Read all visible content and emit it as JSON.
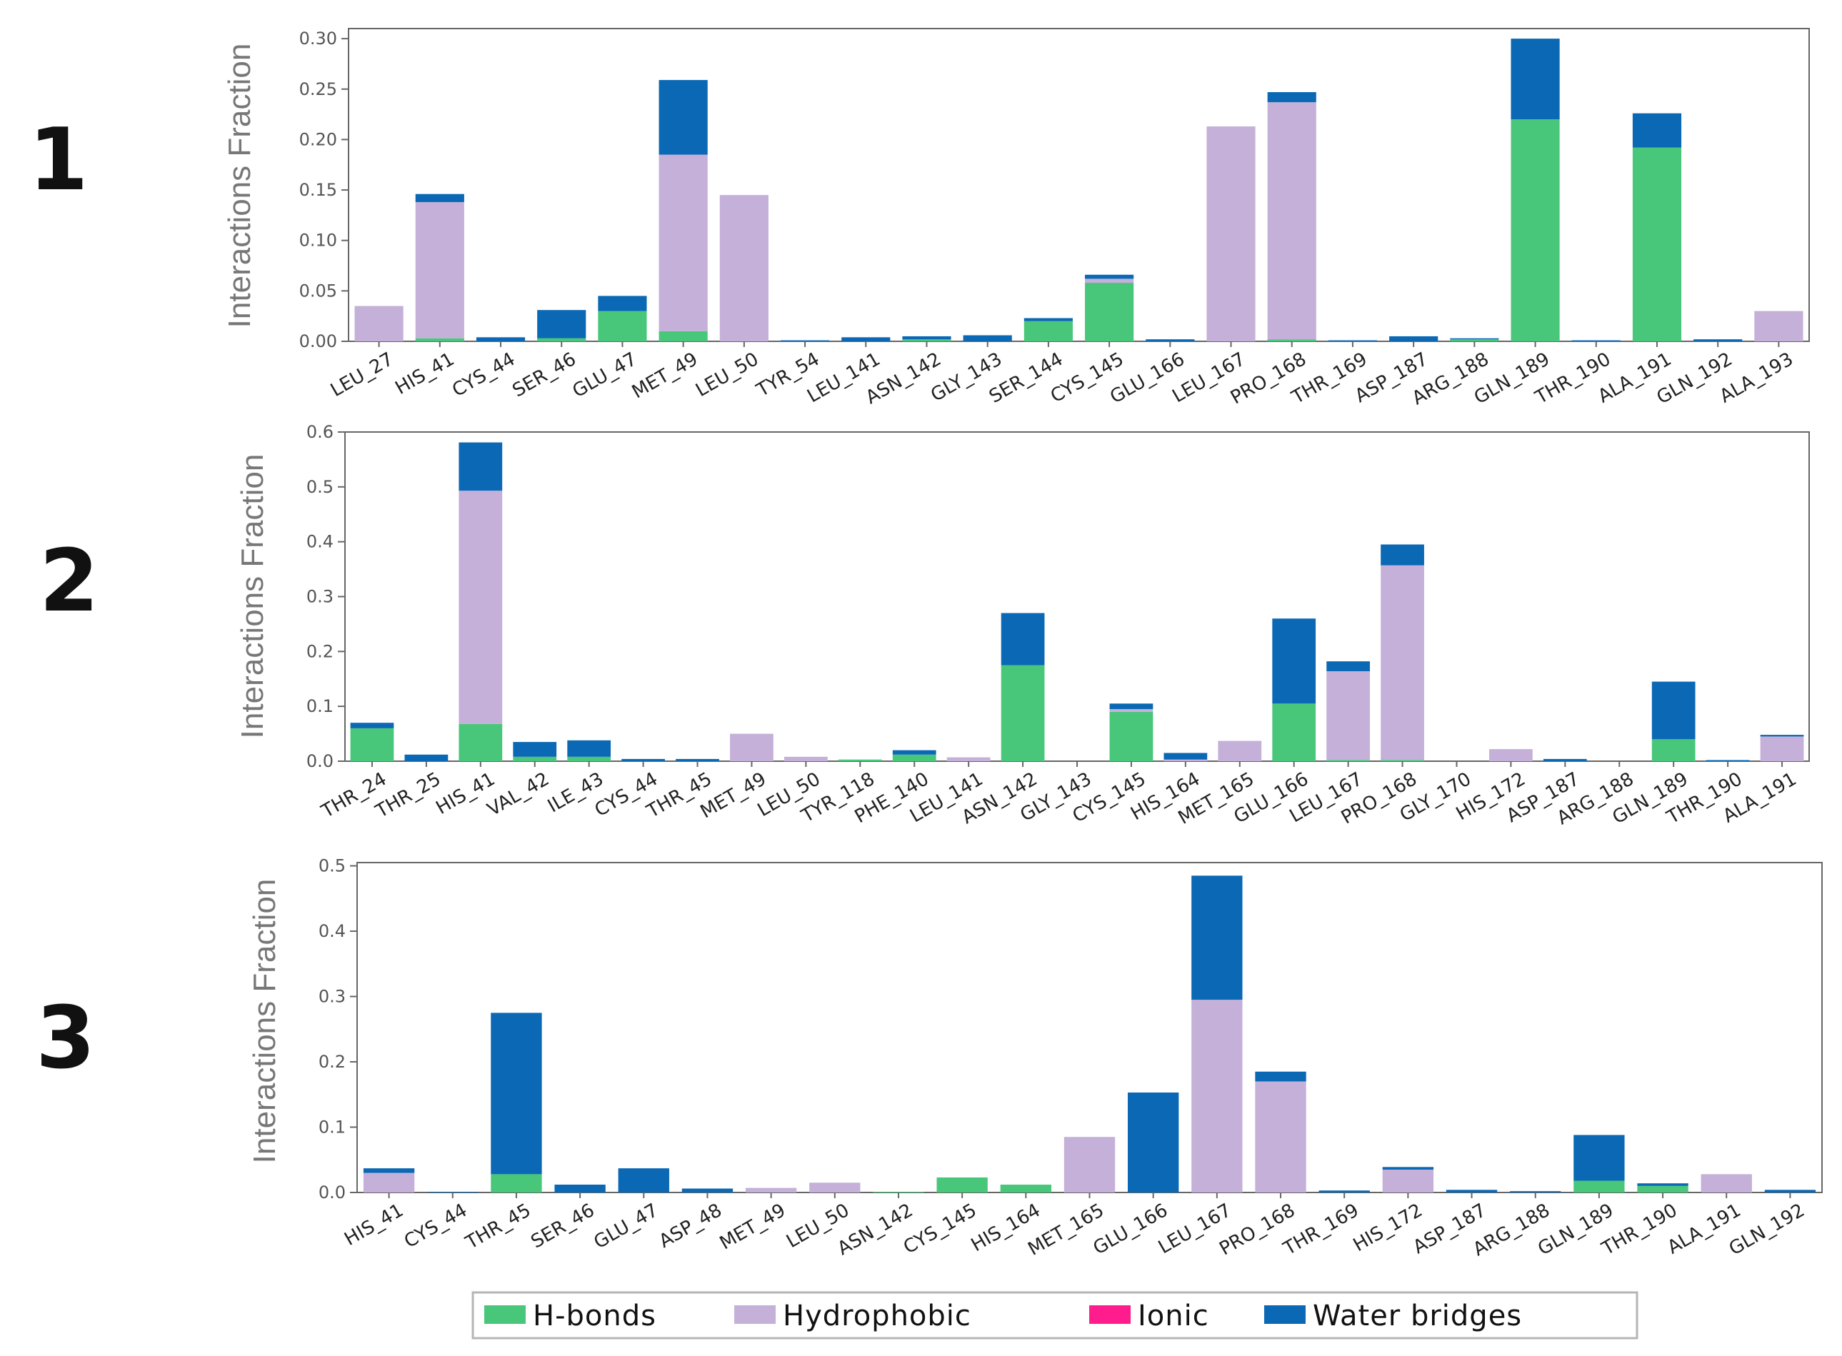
{
  "panel_labels": [
    "1",
    "2",
    "3"
  ],
  "colors": {
    "hbonds": "#48c77a",
    "hydrophobic": "#c4b0d8",
    "ionic": "#ff1c8d",
    "water": "#0a68b4",
    "axis": "#666666"
  },
  "legend": {
    "items": [
      {
        "key": "hbonds",
        "label": "H-bonds"
      },
      {
        "key": "hydrophobic",
        "label": "Hydrophobic"
      },
      {
        "key": "ionic",
        "label": "Ionic"
      },
      {
        "key": "water",
        "label": "Water bridges"
      }
    ]
  },
  "chart_data": [
    {
      "type": "bar",
      "stacked": true,
      "ylabel": "Interactions Fraction",
      "ylim": [
        0,
        0.31
      ],
      "yticks": [
        "0.00",
        "0.05",
        "0.10",
        "0.15",
        "0.20",
        "0.25",
        "0.30"
      ],
      "categories": [
        "LEU_27",
        "HIS_41",
        "CYS_44",
        "SER_46",
        "GLU_47",
        "MET_49",
        "LEU_50",
        "TYR_54",
        "LEU_141",
        "ASN_142",
        "GLY_143",
        "SER_144",
        "CYS_145",
        "GLU_166",
        "LEU_167",
        "PRO_168",
        "THR_169",
        "ASP_187",
        "ARG_188",
        "GLN_189",
        "THR_190",
        "ALA_191",
        "GLN_192",
        "ALA_193"
      ],
      "series": [
        {
          "name": "H-bonds",
          "key": "hbonds",
          "values": [
            0,
            0.003,
            0,
            0.003,
            0.03,
            0.01,
            0,
            0,
            0,
            0.002,
            0,
            0.02,
            0.058,
            0,
            0,
            0.002,
            0,
            0,
            0.002,
            0.22,
            0,
            0.192,
            0,
            0
          ]
        },
        {
          "name": "Hydrophobic",
          "key": "hydrophobic",
          "values": [
            0.035,
            0.135,
            0,
            0,
            0,
            0.175,
            0.145,
            0,
            0,
            0,
            0,
            0,
            0.004,
            0,
            0.213,
            0.235,
            0,
            0,
            0,
            0,
            0,
            0,
            0,
            0.03
          ]
        },
        {
          "name": "Ionic",
          "key": "ionic",
          "values": [
            0,
            0,
            0,
            0,
            0,
            0,
            0,
            0,
            0,
            0,
            0,
            0,
            0,
            0,
            0,
            0,
            0,
            0,
            0,
            0,
            0,
            0,
            0,
            0
          ]
        },
        {
          "name": "Water bridges",
          "key": "water",
          "values": [
            0,
            0.008,
            0.004,
            0.028,
            0.015,
            0.074,
            0,
            0.001,
            0.004,
            0.003,
            0.006,
            0.003,
            0.004,
            0.002,
            0,
            0.01,
            0.001,
            0.005,
            0.001,
            0.08,
            0.001,
            0.034,
            0.002,
            0
          ]
        }
      ]
    },
    {
      "type": "bar",
      "stacked": true,
      "ylabel": "Interactions Fraction",
      "ylim": [
        0,
        0.6
      ],
      "yticks": [
        "0.0",
        "0.1",
        "0.2",
        "0.3",
        "0.4",
        "0.5",
        "0.6"
      ],
      "categories": [
        "THR_24",
        "THR_25",
        "HIS_41",
        "VAL_42",
        "ILE_43",
        "CYS_44",
        "THR_45",
        "MET_49",
        "LEU_50",
        "TYR_118",
        "PHE_140",
        "LEU_141",
        "ASN_142",
        "GLY_143",
        "CYS_145",
        "HIS_164",
        "MET_165",
        "GLU_166",
        "LEU_167",
        "PRO_168",
        "GLY_170",
        "HIS_172",
        "ASP_187",
        "ARG_188",
        "GLN_189",
        "THR_190",
        "ALA_191"
      ],
      "series": [
        {
          "name": "H-bonds",
          "key": "hbonds",
          "values": [
            0.06,
            0,
            0.068,
            0.008,
            0.008,
            0,
            0,
            0,
            0,
            0.003,
            0.012,
            0,
            0.175,
            0,
            0.09,
            0,
            0,
            0.105,
            0.002,
            0.002,
            0,
            0,
            0,
            0,
            0.04,
            0,
            0
          ]
        },
        {
          "name": "Hydrophobic",
          "key": "hydrophobic",
          "values": [
            0,
            0,
            0.425,
            0,
            0,
            0,
            0,
            0.05,
            0.008,
            0,
            0,
            0.007,
            0,
            0,
            0.005,
            0.003,
            0.037,
            0,
            0.162,
            0.355,
            0,
            0.022,
            0,
            0,
            0,
            0,
            0.045
          ]
        },
        {
          "name": "Ionic",
          "key": "ionic",
          "values": [
            0,
            0,
            0,
            0,
            0,
            0,
            0,
            0,
            0,
            0,
            0,
            0,
            0,
            0,
            0,
            0,
            0,
            0,
            0,
            0,
            0,
            0,
            0,
            0,
            0,
            0,
            0
          ]
        },
        {
          "name": "Water bridges",
          "key": "water",
          "values": [
            0.01,
            0.012,
            0.088,
            0.027,
            0.03,
            0.004,
            0.004,
            0,
            0,
            0,
            0.008,
            0,
            0.095,
            0,
            0.01,
            0.012,
            0,
            0.155,
            0.018,
            0.038,
            0,
            0,
            0.004,
            0,
            0.105,
            0.002,
            0.003
          ]
        }
      ]
    },
    {
      "type": "bar",
      "stacked": true,
      "ylabel": "Interactions Fraction",
      "ylim": [
        0,
        0.505
      ],
      "yticks": [
        "0.0",
        "0.1",
        "0.2",
        "0.3",
        "0.4",
        "0.5"
      ],
      "categories": [
        "HIS_41",
        "CYS_44",
        "THR_45",
        "SER_46",
        "GLU_47",
        "ASP_48",
        "MET_49",
        "LEU_50",
        "ASN_142",
        "CYS_145",
        "HIS_164",
        "MET_165",
        "GLU_166",
        "LEU_167",
        "PRO_168",
        "THR_169",
        "HIS_172",
        "ASP_187",
        "ARG_188",
        "GLN_189",
        "THR_190",
        "ALA_191",
        "GLN_192"
      ],
      "series": [
        {
          "name": "H-bonds",
          "key": "hbonds",
          "values": [
            0,
            0,
            0.028,
            0,
            0,
            0,
            0,
            0,
            0.001,
            0.023,
            0.012,
            0,
            0,
            0,
            0,
            0,
            0,
            0,
            0,
            0.018,
            0.01,
            0,
            0
          ]
        },
        {
          "name": "Hydrophobic",
          "key": "hydrophobic",
          "values": [
            0.03,
            0,
            0,
            0,
            0,
            0,
            0.007,
            0.015,
            0,
            0,
            0,
            0.085,
            0,
            0.295,
            0.17,
            0,
            0.035,
            0,
            0,
            0,
            0,
            0.028,
            0
          ]
        },
        {
          "name": "Ionic",
          "key": "ionic",
          "values": [
            0,
            0,
            0,
            0,
            0,
            0,
            0,
            0,
            0,
            0,
            0,
            0,
            0,
            0,
            0,
            0,
            0,
            0,
            0,
            0,
            0,
            0,
            0
          ]
        },
        {
          "name": "Water bridges",
          "key": "water",
          "values": [
            0.007,
            0.001,
            0.247,
            0.012,
            0.037,
            0.006,
            0,
            0,
            0,
            0,
            0,
            0,
            0.153,
            0.19,
            0.015,
            0.003,
            0.004,
            0.004,
            0.002,
            0.07,
            0.004,
            0,
            0.004
          ]
        }
      ]
    }
  ]
}
